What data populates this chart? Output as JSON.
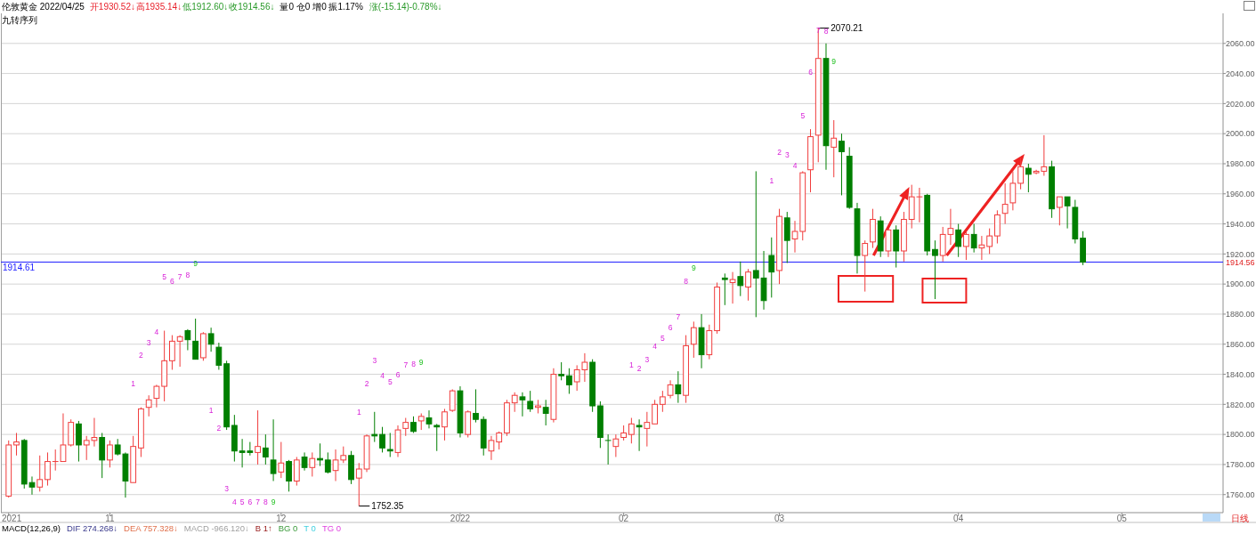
{
  "chart_data": {
    "type": "candlestick",
    "title": "伦敦黄金 2022/04/25",
    "categories": [
      "2021",
      null,
      null,
      null,
      null,
      null,
      null,
      null,
      null,
      null,
      null,
      null,
      null,
      "11",
      null,
      null,
      null,
      null,
      null,
      null,
      null,
      null,
      null,
      null,
      null,
      null,
      null,
      null,
      null,
      null,
      null,
      null,
      null,
      null,
      null,
      "12",
      null,
      null,
      null,
      null,
      null,
      null,
      null,
      null,
      null,
      null,
      null,
      null,
      null,
      null,
      null,
      null,
      null,
      null,
      null,
      null,
      null,
      null,
      "2022",
      null,
      null,
      null,
      null,
      null,
      null,
      null,
      null,
      null,
      null,
      null,
      null,
      null,
      null,
      null,
      null,
      null,
      null,
      null,
      null,
      "02",
      null,
      null,
      null,
      null,
      null,
      null,
      null,
      null,
      null,
      null,
      null,
      null,
      null,
      null,
      null,
      null,
      null,
      null,
      null,
      "03",
      null,
      null,
      null,
      null,
      null,
      null,
      null,
      null,
      null,
      null,
      null,
      null,
      null,
      null,
      null,
      null,
      null,
      null,
      null,
      null,
      null,
      null,
      "04",
      null,
      null,
      null,
      null,
      null,
      null,
      null,
      null,
      null,
      null,
      null,
      null,
      null,
      null,
      null,
      null,
      null,
      null,
      null,
      null,
      "05",
      null,
      null,
      null,
      null,
      null,
      null,
      null,
      null,
      null,
      null,
      null,
      null
    ],
    "ohlc": [
      [
        1759,
        1796,
        1758,
        1793
      ],
      [
        1793,
        1801,
        1786,
        1795
      ],
      [
        1796,
        1797,
        1764,
        1767
      ],
      [
        1768,
        1772,
        1760,
        1765
      ],
      [
        1765,
        1786,
        1762,
        1770
      ],
      [
        1770,
        1788,
        1766,
        1782
      ],
      [
        1782,
        1790,
        1776,
        1782
      ],
      [
        1782,
        1814,
        1782,
        1793
      ],
      [
        1793,
        1810,
        1792,
        1808
      ],
      [
        1807,
        1809,
        1782,
        1793
      ],
      [
        1793,
        1799,
        1783,
        1796
      ],
      [
        1796,
        1811,
        1792,
        1798
      ],
      [
        1798,
        1801,
        1771,
        1783
      ],
      [
        1783,
        1796,
        1778,
        1793
      ],
      [
        1793,
        1797,
        1786,
        1787
      ],
      [
        1787,
        1788,
        1758,
        1769
      ],
      [
        1768,
        1799,
        1768,
        1792
      ],
      [
        1791,
        1818,
        1785,
        1817
      ],
      [
        1818,
        1826,
        1812,
        1823
      ],
      [
        1824,
        1833,
        1818,
        1832
      ],
      [
        1832,
        1869,
        1822,
        1849
      ],
      [
        1849,
        1866,
        1843,
        1862
      ],
      [
        1862,
        1866,
        1845,
        1865
      ],
      [
        1869,
        1870,
        1856,
        1863
      ],
      [
        1862,
        1877,
        1850,
        1850
      ],
      [
        1851,
        1868,
        1849,
        1867
      ],
      [
        1867,
        1871,
        1855,
        1860
      ],
      [
        1858,
        1861,
        1843,
        1846
      ],
      [
        1847,
        1849,
        1803,
        1805
      ],
      [
        1806,
        1813,
        1782,
        1789
      ],
      [
        1789,
        1797,
        1778,
        1788
      ],
      [
        1789,
        1795,
        1786,
        1788
      ],
      [
        1788,
        1816,
        1780,
        1792
      ],
      [
        1791,
        1800,
        1780,
        1785
      ],
      [
        1783,
        1810,
        1769,
        1774
      ],
      [
        1775,
        1795,
        1771,
        1781
      ],
      [
        1782,
        1783,
        1762,
        1769
      ],
      [
        1769,
        1785,
        1766,
        1783
      ],
      [
        1785,
        1788,
        1776,
        1778
      ],
      [
        1778,
        1788,
        1772,
        1784
      ],
      [
        1784,
        1794,
        1779,
        1783
      ],
      [
        1783,
        1788,
        1774,
        1775
      ],
      [
        1776,
        1790,
        1769,
        1783
      ],
      [
        1783,
        1792,
        1781,
        1786
      ],
      [
        1786,
        1789,
        1767,
        1770
      ],
      [
        1771,
        1781,
        1752.35,
        1777
      ],
      [
        1777,
        1800,
        1775,
        1799
      ],
      [
        1800,
        1815,
        1795,
        1799
      ],
      [
        1800,
        1805,
        1788,
        1791
      ],
      [
        1790,
        1801,
        1785,
        1789
      ],
      [
        1788,
        1806,
        1785,
        1803
      ],
      [
        1804,
        1811,
        1799,
        1808
      ],
      [
        1808,
        1812,
        1801,
        1802
      ],
      [
        1809,
        1814,
        1803,
        1812
      ],
      [
        1811,
        1816,
        1804,
        1807
      ],
      [
        1806,
        1807,
        1789,
        1805
      ],
      [
        1805,
        1817,
        1796,
        1815
      ],
      [
        1816,
        1830,
        1815,
        1829
      ],
      [
        1829,
        1832,
        1798,
        1801
      ],
      [
        1800,
        1816,
        1798,
        1815
      ],
      [
        1814,
        1830,
        1808,
        1810
      ],
      [
        1810,
        1812,
        1786,
        1791
      ],
      [
        1789,
        1799,
        1783,
        1796
      ],
      [
        1795,
        1802,
        1790,
        1801
      ],
      [
        1801,
        1823,
        1799,
        1821
      ],
      [
        1821,
        1828,
        1815,
        1826
      ],
      [
        1825,
        1828,
        1812,
        1823
      ],
      [
        1822,
        1829,
        1815,
        1817
      ],
      [
        1818,
        1823,
        1814,
        1819
      ],
      [
        1818,
        1823,
        1806,
        1814
      ],
      [
        1810,
        1844,
        1808,
        1840
      ],
      [
        1840,
        1848,
        1836,
        1839
      ],
      [
        1839,
        1844,
        1827,
        1833
      ],
      [
        1835,
        1846,
        1829,
        1843
      ],
      [
        1843,
        1854,
        1835,
        1848
      ],
      [
        1848,
        1850,
        1815,
        1819
      ],
      [
        1819,
        1822,
        1791,
        1798
      ],
      [
        1796,
        1800,
        1780,
        1796
      ],
      [
        1792,
        1800,
        1785,
        1797
      ],
      [
        1798,
        1806,
        1796,
        1801
      ],
      [
        1800,
        1811,
        1794,
        1807
      ],
      [
        1806,
        1810,
        1789,
        1805
      ],
      [
        1804,
        1815,
        1792,
        1808
      ],
      [
        1807,
        1823,
        1807,
        1820
      ],
      [
        1820,
        1829,
        1815,
        1825
      ],
      [
        1826,
        1836,
        1824,
        1833
      ],
      [
        1833,
        1842,
        1821,
        1827
      ],
      [
        1826,
        1866,
        1821,
        1859
      ],
      [
        1860,
        1875,
        1851,
        1871
      ],
      [
        1871,
        1880,
        1844,
        1853
      ],
      [
        1853,
        1873,
        1850,
        1869
      ],
      [
        1869,
        1901,
        1867,
        1898
      ],
      [
        1904,
        1907,
        1886,
        1903
      ],
      [
        1901,
        1908,
        1887,
        1903
      ],
      [
        1905,
        1915,
        1892,
        1899
      ],
      [
        1898,
        1910,
        1889,
        1908
      ],
      [
        1909,
        1975,
        1878,
        1904
      ],
      [
        1904,
        1922,
        1883,
        1889
      ],
      [
        1919,
        1931,
        1891,
        1908
      ],
      [
        1909,
        1950,
        1900,
        1945
      ],
      [
        1944,
        1948,
        1914,
        1929
      ],
      [
        1930,
        1942,
        1921,
        1935
      ],
      [
        1935,
        1975,
        1929,
        1974
      ],
      [
        1976,
        2003,
        1961,
        1998
      ],
      [
        1999,
        2070.21,
        1981,
        2050
      ],
      [
        2050,
        2060,
        1976,
        1992
      ],
      [
        1991,
        2009,
        1971,
        1997
      ],
      [
        1995,
        2000,
        1959,
        1988
      ],
      [
        1985,
        1991,
        1950,
        1951
      ],
      [
        1950,
        1954,
        1907,
        1919
      ],
      [
        1919,
        1929,
        1895,
        1927
      ],
      [
        1928,
        1950,
        1924,
        1943
      ],
      [
        1942,
        1945,
        1918,
        1922
      ],
      [
        1922,
        1937,
        1918,
        1936
      ],
      [
        1936,
        1939,
        1911,
        1922
      ],
      [
        1922,
        1948,
        1915,
        1943
      ],
      [
        1943,
        1966,
        1937,
        1958
      ],
      [
        1958,
        1964,
        1941,
        1958
      ],
      [
        1959,
        1960,
        1919,
        1922
      ],
      [
        1923,
        1929,
        1890,
        1919
      ],
      [
        1919,
        1938,
        1915,
        1933
      ],
      [
        1933,
        1950,
        1926,
        1937
      ],
      [
        1936,
        1940,
        1918,
        1925
      ],
      [
        1925,
        1935,
        1916,
        1933
      ],
      [
        1933,
        1940,
        1921,
        1924
      ],
      [
        1924,
        1932,
        1916,
        1926
      ],
      [
        1925,
        1937,
        1920,
        1932
      ],
      [
        1932,
        1949,
        1927,
        1946
      ],
      [
        1947,
        1967,
        1940,
        1953
      ],
      [
        1954,
        1975,
        1949,
        1967
      ],
      [
        1967,
        1984,
        1963,
        1978
      ],
      [
        1977,
        1980,
        1961,
        1973
      ],
      [
        1974,
        1976,
        1973,
        1975
      ],
      [
        1975,
        1999,
        1972,
        1978
      ],
      [
        1978,
        1982,
        1944,
        1950
      ],
      [
        1951,
        1958,
        1939,
        1958
      ],
      [
        1958,
        1958,
        1937,
        1952
      ],
      [
        1951,
        1956,
        1927,
        1930
      ],
      [
        1930.52,
        1935.14,
        1912.6,
        1914.56
      ],
      null,
      null,
      null,
      null,
      null,
      null,
      null,
      null,
      null,
      null,
      null,
      null,
      null,
      null,
      null,
      null,
      null
    ],
    "colors": [
      "#f03c3c",
      "#f03c3c",
      "#007f00",
      "#007f00",
      "#f03c3c",
      "#f03c3c",
      "#f03c3c",
      "#f03c3c",
      "#f03c3c",
      "#007f00",
      "#f03c3c",
      "#f03c3c",
      "#007f00",
      "#f03c3c",
      "#007f00",
      "#007f00",
      "#f03c3c",
      "#f03c3c",
      "#f03c3c",
      "#f03c3c",
      "#f03c3c",
      "#f03c3c",
      "#f03c3c",
      "#007f00",
      "#007f00",
      "#f03c3c",
      "#007f00",
      "#007f00",
      "#007f00",
      "#007f00",
      "#007f00",
      "#007f00",
      "#f03c3c",
      "#007f00",
      "#007f00",
      "#f03c3c",
      "#007f00",
      "#f03c3c",
      "#007f00",
      "#f03c3c",
      "#007f00",
      "#007f00",
      "#f03c3c",
      "#f03c3c",
      "#007f00",
      "#f03c3c",
      "#f03c3c",
      "#007f00",
      "#007f00",
      "#007f00",
      "#f03c3c",
      "#f03c3c",
      "#007f00",
      "#f03c3c",
      "#007f00",
      "#007f00",
      "#f03c3c",
      "#f03c3c",
      "#007f00",
      "#f03c3c",
      "#007f00",
      "#007f00",
      "#f03c3c",
      "#f03c3c",
      "#f03c3c",
      "#f03c3c",
      "#007f00",
      "#007f00",
      "#f03c3c",
      "#007f00",
      "#f03c3c",
      "#007f00",
      "#007f00",
      "#f03c3c",
      "#f03c3c",
      "#007f00",
      "#007f00",
      "#007f00",
      "#f03c3c",
      "#f03c3c",
      "#f03c3c",
      "#007f00",
      "#f03c3c",
      "#f03c3c",
      "#f03c3c",
      "#f03c3c",
      "#007f00",
      "#f03c3c",
      "#f03c3c",
      "#007f00",
      "#f03c3c",
      "#f03c3c",
      "#007f00",
      "#f03c3c",
      "#007f00",
      "#f03c3c",
      "#007f00",
      "#007f00",
      "#007f00",
      "#f03c3c",
      "#007f00",
      "#f03c3c",
      "#f03c3c",
      "#f03c3c",
      "#f03c3c",
      "#007f00",
      "#f03c3c",
      "#007f00",
      "#007f00",
      "#007f00",
      "#f03c3c",
      "#f03c3c",
      "#007f00",
      "#f03c3c",
      "#007f00",
      "#f03c3c",
      "#f03c3c",
      "#f03c3c",
      "#007f00",
      "#007f00",
      "#f03c3c",
      "#f03c3c",
      "#007f00",
      "#f03c3c",
      "#007f00",
      "#f03c3c",
      "#f03c3c",
      "#f03c3c",
      "#f03c3c",
      "#f03c3c",
      "#f03c3c",
      "#007f00",
      "#f03c3c",
      "#f03c3c",
      "#007f00",
      "#f03c3c",
      "#007f00",
      "#007f00",
      "#007f00",
      null,
      null,
      null,
      null,
      null,
      null,
      null,
      null,
      null,
      null,
      null,
      null,
      null,
      null,
      null,
      null,
      null
    ],
    "ylim": [
      1748,
      2080
    ],
    "yticks": [
      {
        "value": 1760,
        "label": "1760.00"
      },
      {
        "value": 1780,
        "label": "1780.00"
      },
      {
        "value": 1800,
        "label": "1800.00"
      },
      {
        "value": 1820,
        "label": "1820.00"
      },
      {
        "value": 1840,
        "label": "1840.00"
      },
      {
        "value": 1860,
        "label": "1860.00"
      },
      {
        "value": 1880,
        "label": "1880.00"
      },
      {
        "value": 1900,
        "label": "1900.00"
      },
      {
        "value": 1920,
        "label": "1920.00"
      },
      {
        "value": 1940,
        "label": "1940.00"
      },
      {
        "value": 1960,
        "label": "1960.00"
      },
      {
        "value": 1980,
        "label": "1980.00"
      },
      {
        "value": 2000,
        "label": "2000.00"
      },
      {
        "value": 2020,
        "label": "2020.00"
      },
      {
        "value": 2040,
        "label": "2040.00"
      },
      {
        "value": 2060,
        "label": "2060.00"
      }
    ],
    "grid": "y",
    "ref_lines": [
      {
        "axis": "y",
        "value": 1914.61,
        "label": "1914.61",
        "color": "#2020ff"
      }
    ],
    "annotations": [
      "开1930.52↓",
      "高1935.14↓",
      "低1912.60↓",
      "收1914.56↓",
      "量0 仓0 增0 振1.17%",
      "涨(-15.14)-0.78%↓",
      "九转序列",
      "MACD(12,26,9)",
      "DIF 274.268↓",
      "DEA 757.328↓",
      "MACD -966.120↓",
      "B 1↑",
      "BG 0",
      "T 0",
      "TG 0",
      "日线",
      "1914.56",
      "2070.21",
      "1752.35",
      "1",
      "2",
      "3",
      "4",
      "5",
      "6",
      "7",
      "8",
      "9",
      "1",
      "2",
      "3",
      "4",
      "5",
      "6",
      "7",
      "8",
      "9",
      "1",
      "2",
      "3",
      "4",
      "5",
      "6",
      "7",
      "8",
      "9",
      "1",
      "2",
      "3",
      "4",
      "5",
      "6",
      "7",
      "8",
      "9",
      "1",
      "2",
      "3",
      "4",
      "5",
      "6",
      "7",
      "8",
      "9"
    ]
  }
}
